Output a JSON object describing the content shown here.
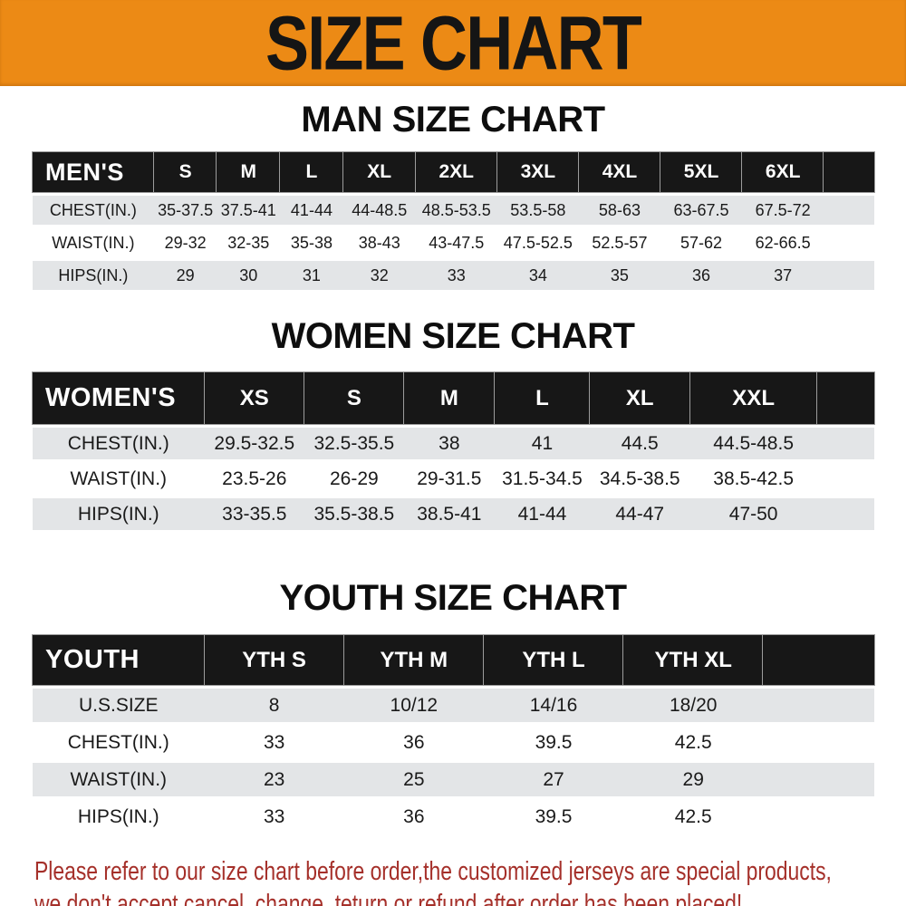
{
  "banner": {
    "title": "SIZE CHART"
  },
  "colors": {
    "banner_bg": "#EC8A15",
    "banner_text": "#151515",
    "header_bg": "#171717",
    "header_text": "#FFFFFF",
    "stripe_bg": "#E3E5E7",
    "footer_text": "#A5302A"
  },
  "men": {
    "title": "MAN SIZE CHART",
    "table": {
      "header_label": "MEN'S",
      "columns": [
        "S",
        "M",
        "L",
        "XL",
        "2XL",
        "3XL",
        "4XL",
        "5XL",
        "6XL"
      ],
      "rows": [
        {
          "label": "CHEST(IN.)",
          "values": [
            "35-37.5",
            "37.5-41",
            "41-44",
            "44-48.5",
            "48.5-53.5",
            "53.5-58",
            "58-63",
            "63-67.5",
            "67.5-72"
          ]
        },
        {
          "label": "WAIST(IN.)",
          "values": [
            "29-32",
            "32-35",
            "35-38",
            "38-43",
            "43-47.5",
            "47.5-52.5",
            "52.5-57",
            "57-62",
            "62-66.5"
          ]
        },
        {
          "label": "HIPS(IN.)",
          "values": [
            "29",
            "30",
            "31",
            "32",
            "33",
            "34",
            "35",
            "36",
            "37"
          ]
        }
      ]
    }
  },
  "women": {
    "title": "WOMEN SIZE CHART",
    "table": {
      "header_label": "WOMEN'S",
      "columns": [
        "XS",
        "S",
        "M",
        "L",
        "XL",
        "XXL"
      ],
      "rows": [
        {
          "label": "CHEST(IN.)",
          "values": [
            "29.5-32.5",
            "32.5-35.5",
            "38",
            "41",
            "44.5",
            "44.5-48.5"
          ]
        },
        {
          "label": "WAIST(IN.)",
          "values": [
            "23.5-26",
            "26-29",
            "29-31.5",
            "31.5-34.5",
            "34.5-38.5",
            "38.5-42.5"
          ]
        },
        {
          "label": "HIPS(IN.)",
          "values": [
            "33-35.5",
            "35.5-38.5",
            "38.5-41",
            "41-44",
            "44-47",
            "47-50"
          ]
        }
      ]
    }
  },
  "youth": {
    "title": "YOUTH SIZE CHART",
    "table": {
      "header_label": "YOUTH",
      "columns": [
        "YTH S",
        "YTH M",
        "YTH L",
        "YTH XL"
      ],
      "rows": [
        {
          "label": "U.S.SIZE",
          "values": [
            "8",
            "10/12",
            "14/16",
            "18/20"
          ]
        },
        {
          "label": "CHEST(IN.)",
          "values": [
            "33",
            "36",
            "39.5",
            "42.5"
          ]
        },
        {
          "label": "WAIST(IN.)",
          "values": [
            "23",
            "25",
            "27",
            "29"
          ]
        },
        {
          "label": "HIPS(IN.)",
          "values": [
            "33",
            "36",
            "39.5",
            "42.5"
          ]
        }
      ]
    }
  },
  "footer": {
    "line1": "Please refer to our size chart before order,the customized jerseys are special products,",
    "line2": "we don't accept cancel, change, teturn or refund after order has been placed!"
  }
}
